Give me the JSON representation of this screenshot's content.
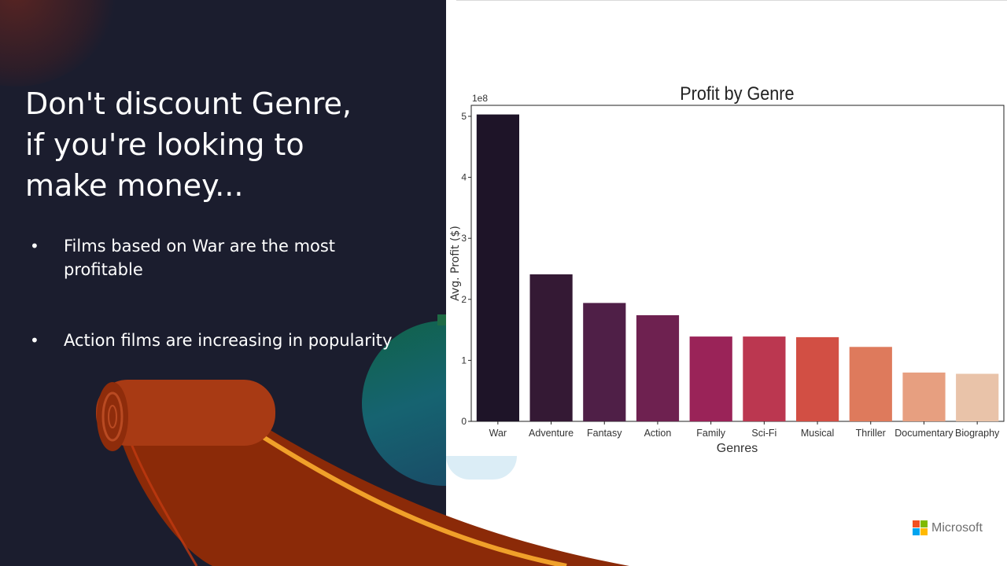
{
  "slide": {
    "headline": "Don't discount Genre,\nif you're looking to\nmake money...",
    "bullets": [
      {
        "marker": "•",
        "text": "Films based on War are the most profitable"
      },
      {
        "marker": "•",
        "text": "Action films are increasing in popularity"
      }
    ],
    "colors": {
      "background": "#1b1d2e",
      "carpet": "#8b2a08",
      "carpet_stripe": "#f0a02a",
      "panel": "#ffffff"
    }
  },
  "branding": {
    "logo_text": "Microsoft",
    "logo_colors": [
      "#f25022",
      "#7fba00",
      "#00a4ef",
      "#ffb900"
    ]
  },
  "chart_data": {
    "type": "bar",
    "title": "Profit by Genre",
    "xlabel": "Genres",
    "ylabel": "Avg. Profit ($)",
    "offset_label": "1e8",
    "categories": [
      "War",
      "Adventure",
      "Fantasy",
      "Action",
      "Family",
      "Sci-Fi",
      "Musical",
      "Thriller",
      "Documentary",
      "Biography"
    ],
    "values": [
      5.03,
      2.41,
      1.94,
      1.74,
      1.39,
      1.39,
      1.38,
      1.22,
      0.8,
      0.78
    ],
    "value_scale": 100000000,
    "yticks": [
      0,
      1,
      2,
      3,
      4,
      5
    ],
    "ylim": [
      0,
      5.18
    ],
    "grid": false,
    "legend": "none",
    "colors": [
      "#1e1428",
      "#341934",
      "#4f1f47",
      "#6e2150",
      "#9a2358",
      "#bb3750",
      "#d24f44",
      "#de7a5c",
      "#e79f80",
      "#e9c3a9"
    ]
  }
}
